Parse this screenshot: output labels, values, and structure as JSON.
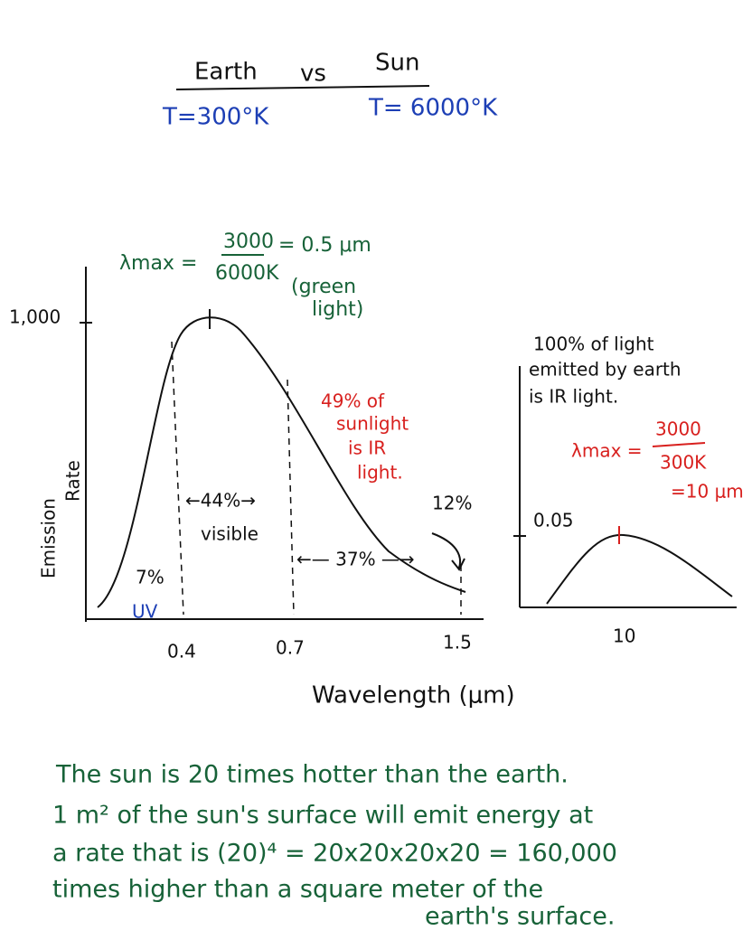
{
  "header": {
    "left": "Earth",
    "middle": "vs",
    "right": "Sun",
    "earth_temp": "T=300°K",
    "sun_temp": "T= 6000°K"
  },
  "sun_formula": {
    "lhs": "λmax =",
    "numerator": "3000",
    "denominator": "6000K",
    "result": "= 0.5 μm",
    "note_1": "(green",
    "note_2": "light)"
  },
  "sun_plot": {
    "y_tick": "1,000",
    "y_label_1": "Emission",
    "y_label_2": "Rate",
    "uv_pct": "7%",
    "uv": "UV",
    "visible_pct": "←44%→",
    "visible": "visible",
    "ir_pct": "←— 37% —→",
    "tail_pct": "12%",
    "ir_note": [
      "49% of",
      "sunlight",
      "is IR",
      "light."
    ],
    "x_ticks": [
      "0.4",
      "0.7",
      "1.5"
    ],
    "x_label": "Wavelength (μm)"
  },
  "earth_plot": {
    "note": [
      "100% of light",
      "emitted by earth",
      "is IR light."
    ],
    "lhs": "λmax =",
    "numerator": "3000",
    "denominator": "300K",
    "result": "=10 μm",
    "y_tick": "0.05",
    "x_tick": "10"
  },
  "footer": {
    "lines": [
      "The sun is 20 times hotter than the earth.",
      "1 m² of the sun's surface will emit energy at",
      "a rate that is (20)⁴ = 20x20x20x20 = 160,000",
      "times higher than a square meter of the",
      "earth's surface."
    ]
  }
}
